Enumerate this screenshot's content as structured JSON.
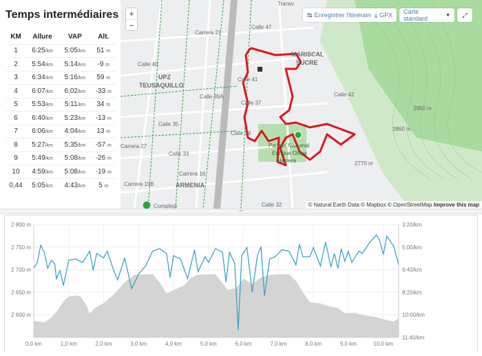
{
  "splits": {
    "title": "Temps intermédiaires",
    "headers": [
      "KM",
      "Allure",
      "VAP",
      "Alt."
    ],
    "unit_pace": "/km",
    "unit_alt": "m",
    "rows": [
      {
        "km": "1",
        "pace": "6:25",
        "gap": "5:05",
        "alt": "51"
      },
      {
        "km": "2",
        "pace": "5:54",
        "gap": "5:14",
        "alt": "-9"
      },
      {
        "km": "3",
        "pace": "6:34",
        "gap": "5:16",
        "alt": "59"
      },
      {
        "km": "4",
        "pace": "6:07",
        "gap": "6:02",
        "alt": "-33"
      },
      {
        "km": "5",
        "pace": "5:53",
        "gap": "5:11",
        "alt": "34"
      },
      {
        "km": "6",
        "pace": "6:40",
        "gap": "5:23",
        "alt": "-13"
      },
      {
        "km": "7",
        "pace": "6:06",
        "gap": "4:04",
        "alt": "13"
      },
      {
        "km": "8",
        "pace": "5:27",
        "gap": "5:35",
        "alt": "-57"
      },
      {
        "km": "9",
        "pace": "5:49",
        "gap": "5:08",
        "alt": "-26"
      },
      {
        "km": "10",
        "pace": "4:59",
        "gap": "5:08",
        "alt": "-19"
      },
      {
        "km": "0,44",
        "pace": "5:05",
        "gap": "4:43",
        "alt": "5"
      }
    ]
  },
  "map": {
    "save_route": "Enregistrer l'itinéraire",
    "gpx": "GPX",
    "style": "Carte standard",
    "zoom_in": "+",
    "zoom_out": "−",
    "labels": [
      "MARISCAL",
      "SUCRE",
      "UPZ",
      "TEUSAQUILLO",
      "ARMENIA",
      "Calle 40",
      "Calle 39A",
      "Calle 37",
      "Calle 35",
      "Calle 33",
      "Calle 41",
      "Calle 42",
      "Calle 36",
      "Calle 32",
      "Carrera 16",
      "Carrera 19B",
      "Carrera 27",
      "Carrera 22",
      "Parque Nacional",
      "Enrique Olaya",
      "Herrera",
      "Transv",
      "Calle 47",
      "2770 m",
      "2860 m",
      "2950 m",
      "Complejo"
    ],
    "attribution": "© Natural Earth Data © Mapbox © OpenStreetMap",
    "improve": "Improve this map",
    "route_color": "#e0141e"
  },
  "chart_data": {
    "type": "area+line",
    "xlabel": "km",
    "x_ticks": [
      "0,0 km",
      "1,0 km",
      "2,0 km",
      "3,0 km",
      "4,0 km",
      "5,0 km",
      "6,0 km",
      "7,0 km",
      "8,0 km",
      "9,0 km",
      "10,0 km"
    ],
    "xlim": [
      0,
      10.44
    ],
    "y_left": {
      "range": [
        2550,
        2800
      ],
      "ticks": [
        "2 600 m",
        "2 650 m",
        "2 700 m",
        "2 750 m",
        "2 800 m"
      ],
      "tick_values": [
        2600,
        2650,
        2700,
        2750,
        2800
      ]
    },
    "y_right": {
      "range_seconds": [
        200,
        700
      ],
      "ticks": [
        "3:20/km",
        "5:00/km",
        "6:40/km",
        "8:20/km",
        "10:00/km",
        "11:40/km"
      ],
      "tick_values": [
        200,
        300,
        400,
        500,
        600,
        700
      ]
    },
    "elevation": {
      "name": "Altitude",
      "color": "#d4d4d4",
      "points": [
        [
          0,
          2587
        ],
        [
          0.3,
          2583
        ],
        [
          0.5,
          2594
        ],
        [
          0.7,
          2612
        ],
        [
          0.85,
          2630
        ],
        [
          1.0,
          2640
        ],
        [
          1.2,
          2643
        ],
        [
          1.35,
          2640
        ],
        [
          1.5,
          2622
        ],
        [
          1.6,
          2603
        ],
        [
          1.75,
          2615
        ],
        [
          2.0,
          2626
        ],
        [
          2.3,
          2645
        ],
        [
          2.6,
          2672
        ],
        [
          2.9,
          2689
        ],
        [
          3.4,
          2690
        ],
        [
          3.6,
          2672
        ],
        [
          3.8,
          2647
        ],
        [
          4.0,
          2655
        ],
        [
          4.3,
          2665
        ],
        [
          4.5,
          2682
        ],
        [
          4.7,
          2689
        ],
        [
          5.2,
          2690
        ],
        [
          5.4,
          2670
        ],
        [
          5.55,
          2655
        ],
        [
          5.8,
          2660
        ],
        [
          6.0,
          2680
        ],
        [
          6.25,
          2668
        ],
        [
          6.5,
          2683
        ],
        [
          6.8,
          2689
        ],
        [
          7.3,
          2690
        ],
        [
          7.5,
          2675
        ],
        [
          7.7,
          2650
        ],
        [
          7.9,
          2628
        ],
        [
          8.2,
          2625
        ],
        [
          8.5,
          2618
        ],
        [
          8.7,
          2615
        ],
        [
          8.9,
          2604
        ],
        [
          9.2,
          2604
        ],
        [
          9.5,
          2598
        ],
        [
          9.8,
          2595
        ],
        [
          10.0,
          2590
        ],
        [
          10.3,
          2585
        ],
        [
          10.44,
          2593
        ]
      ]
    },
    "pace": {
      "name": "Allure",
      "color": "#3ba3c4",
      "points": [
        [
          0,
          394
        ],
        [
          0.1,
          368
        ],
        [
          0.2,
          292
        ],
        [
          0.3,
          323
        ],
        [
          0.4,
          394
        ],
        [
          0.5,
          358
        ],
        [
          0.6,
          373
        ],
        [
          0.65,
          440
        ],
        [
          0.75,
          404
        ],
        [
          0.85,
          470
        ],
        [
          1.0,
          358
        ],
        [
          1.2,
          353
        ],
        [
          1.4,
          368
        ],
        [
          1.6,
          318
        ],
        [
          1.7,
          404
        ],
        [
          1.8,
          328
        ],
        [
          2.0,
          348
        ],
        [
          2.1,
          318
        ],
        [
          2.3,
          409
        ],
        [
          2.4,
          445
        ],
        [
          2.6,
          348
        ],
        [
          2.8,
          485
        ],
        [
          3.0,
          419
        ],
        [
          3.2,
          384
        ],
        [
          3.4,
          318
        ],
        [
          3.6,
          307
        ],
        [
          3.8,
          328
        ],
        [
          3.9,
          434
        ],
        [
          4.0,
          338
        ],
        [
          4.2,
          353
        ],
        [
          4.4,
          440
        ],
        [
          4.6,
          312
        ],
        [
          4.7,
          409
        ],
        [
          4.9,
          343
        ],
        [
          5.0,
          368
        ],
        [
          5.2,
          307
        ],
        [
          5.4,
          323
        ],
        [
          5.5,
          455
        ],
        [
          5.6,
          323
        ],
        [
          5.75,
          373
        ],
        [
          5.85,
          668
        ],
        [
          5.95,
          338
        ],
        [
          6.1,
          302
        ],
        [
          6.25,
          500
        ],
        [
          6.4,
          338
        ],
        [
          6.5,
          297
        ],
        [
          6.6,
          516
        ],
        [
          6.75,
          353
        ],
        [
          6.9,
          343
        ],
        [
          7.1,
          312
        ],
        [
          7.3,
          318
        ],
        [
          7.5,
          379
        ],
        [
          7.6,
          287
        ],
        [
          7.7,
          343
        ],
        [
          7.9,
          343
        ],
        [
          8.0,
          302
        ],
        [
          8.2,
          384
        ],
        [
          8.35,
          277
        ],
        [
          8.5,
          389
        ],
        [
          8.6,
          328
        ],
        [
          8.7,
          394
        ],
        [
          8.8,
          307
        ],
        [
          8.9,
          363
        ],
        [
          9.0,
          318
        ],
        [
          9.1,
          368
        ],
        [
          9.3,
          318
        ],
        [
          9.4,
          328
        ],
        [
          9.6,
          282
        ],
        [
          9.8,
          246
        ],
        [
          9.9,
          272
        ],
        [
          10.0,
          333
        ],
        [
          10.1,
          252
        ],
        [
          10.3,
          297
        ],
        [
          10.44,
          379
        ]
      ]
    }
  }
}
